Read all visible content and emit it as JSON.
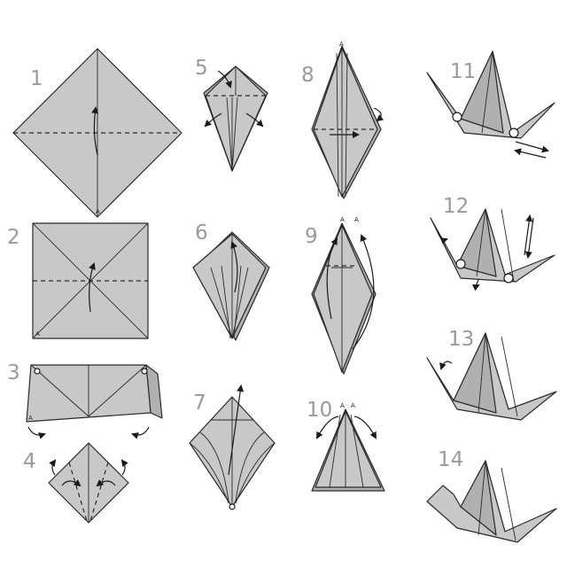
{
  "steps": [
    {
      "id": 1,
      "label": "1"
    },
    {
      "id": 2,
      "label": "2"
    },
    {
      "id": 3,
      "label": "3"
    },
    {
      "id": 4,
      "label": "4"
    },
    {
      "id": 5,
      "label": "5"
    },
    {
      "id": 6,
      "label": "6"
    },
    {
      "id": 7,
      "label": "7"
    },
    {
      "id": 8,
      "label": "8"
    },
    {
      "id": 9,
      "label": "9"
    },
    {
      "id": 10,
      "label": "10"
    },
    {
      "id": 11,
      "label": "11"
    },
    {
      "id": 12,
      "label": "12"
    },
    {
      "id": 13,
      "label": "13"
    },
    {
      "id": 14,
      "label": "14"
    }
  ],
  "corner_mark": "A",
  "colors": {
    "paper": "#c8c8c8",
    "line": "#2a2a2a",
    "number": "#9a9a9a",
    "background": "#ffffff"
  }
}
